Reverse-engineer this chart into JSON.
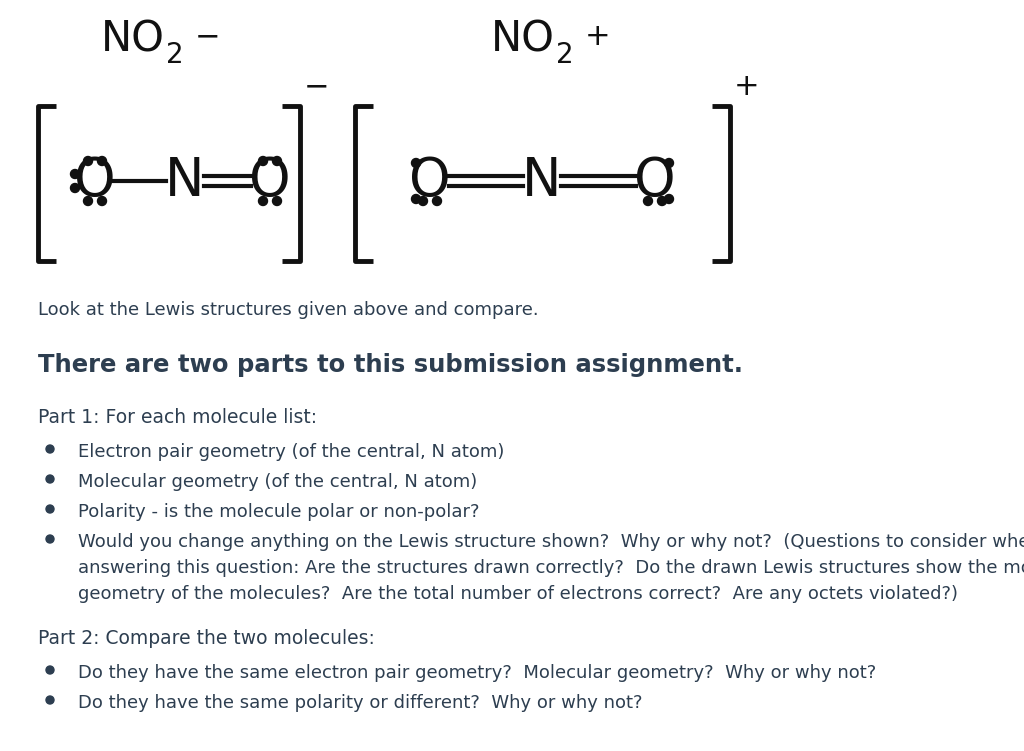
{
  "bg_color": "#ffffff",
  "text_color": "#2d3e50",
  "black": "#111111",
  "intro_text": "Look at the Lewis structures given above and compare.",
  "heading": "There are two parts to this submission assignment.",
  "part1_header": "Part 1: For each molecule list:",
  "part1_bullets": [
    "Electron pair geometry (of the central, N atom)",
    "Molecular geometry (of the central, N atom)",
    "Polarity - is the molecule polar or non-polar?",
    "Would you change anything on the Lewis structure shown?  Why or why not?  (Questions to consider when answering this question: Are the structures drawn correctly?  Do the drawn Lewis structures show the molecular geometry of the molecules?  Are the total number of electrons correct?  Are any octets violated?)"
  ],
  "part2_header": "Part 2: Compare the two molecules:",
  "part2_bullets": [
    "Do they have the same electron pair geometry?  Molecular geometry?  Why or why not?",
    "Do they have the same polarity or different?  Why or why not?"
  ]
}
